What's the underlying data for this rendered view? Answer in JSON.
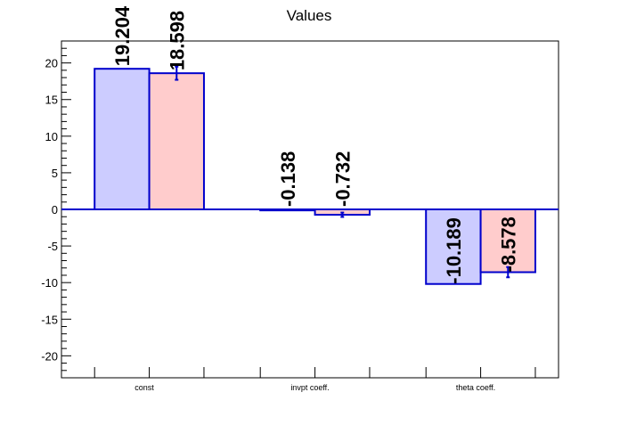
{
  "chart_data": {
    "type": "bar",
    "title": "Values",
    "xlabel": "",
    "ylabel": "",
    "categories": [
      "const",
      "invpt coeff.",
      "theta coeff."
    ],
    "ylim": [
      -23,
      23
    ],
    "yticks": [
      -20,
      -15,
      -10,
      -5,
      0,
      5,
      10,
      15,
      20
    ],
    "grid": false,
    "legend": "none",
    "series": [
      {
        "values": [
          19.204,
          -0.138,
          -10.189
        ],
        "value_labels": [
          "19.204",
          "-0.138",
          "-10.189"
        ],
        "errors": [
          0,
          0,
          0
        ],
        "fill_color": "#ccccff",
        "edge_color": "#0000cc"
      },
      {
        "values": [
          18.598,
          -0.732,
          -8.578
        ],
        "value_labels": [
          "18.598",
          "-0.732",
          "-8.578"
        ],
        "errors": [
          0.9,
          0.3,
          0.7
        ],
        "fill_color": "#ffcccc",
        "edge_color": "#0000cc"
      }
    ],
    "zero_line_color": "#0000cc"
  }
}
